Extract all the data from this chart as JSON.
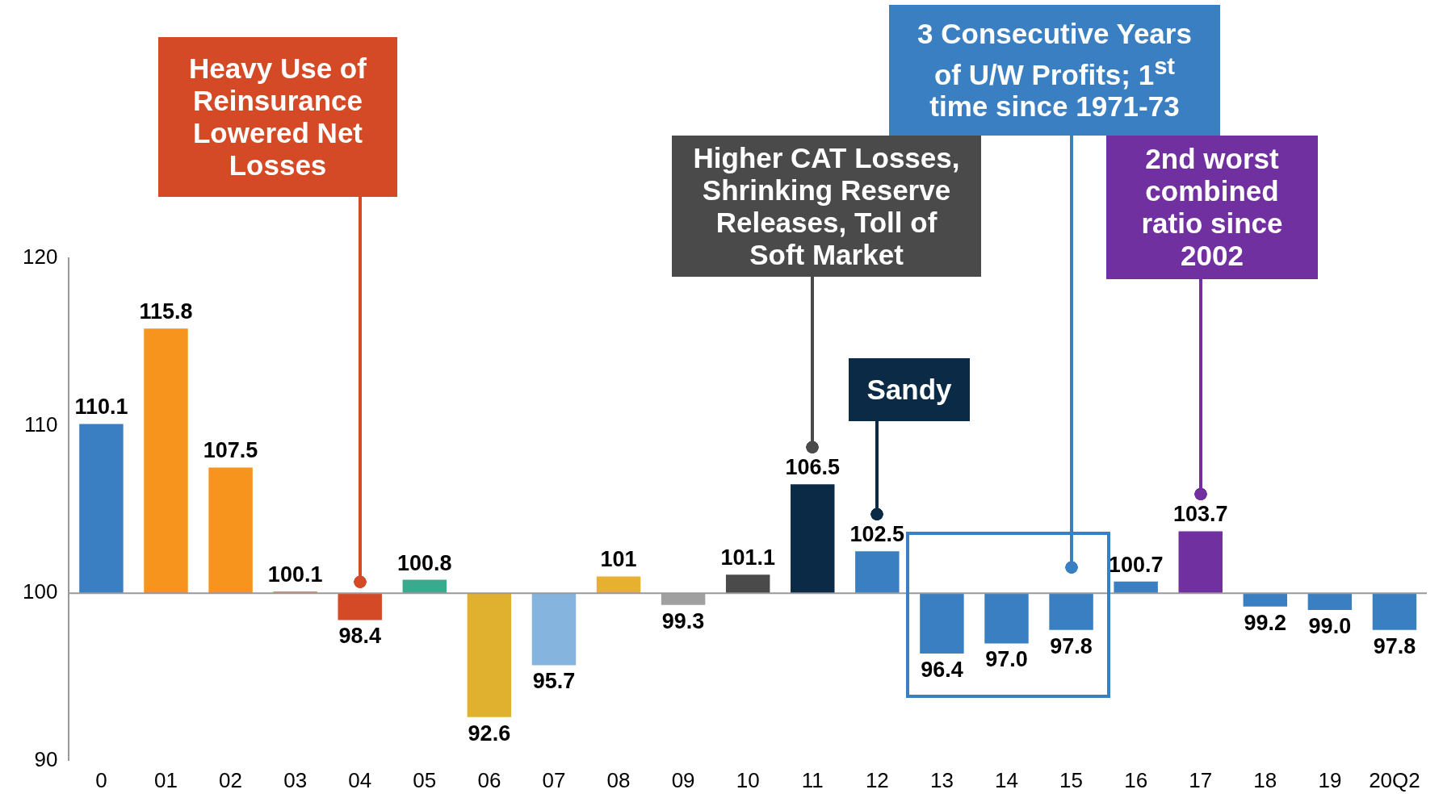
{
  "chart_data": {
    "type": "bar",
    "categories": [
      "0",
      "01",
      "02",
      "03",
      "04",
      "05",
      "06",
      "07",
      "08",
      "09",
      "10",
      "11",
      "12",
      "13",
      "14",
      "15",
      "16",
      "17",
      "18",
      "19",
      "20Q2"
    ],
    "base": [
      100,
      100,
      100,
      100,
      100,
      100,
      100,
      100,
      100,
      100,
      100,
      100,
      100,
      100,
      100,
      100,
      100,
      100,
      100,
      100,
      100
    ],
    "values": [
      10.1,
      15.8,
      7.5,
      0.1,
      -1.6,
      0.8,
      -7.4,
      -4.3,
      1,
      -0.7,
      1.1,
      6.5,
      2.5,
      -3.6,
      -3.0,
      -2.2,
      0.7,
      3.7,
      -0.8,
      -1.0,
      -2.2
    ],
    "value_labels": [
      "110.1",
      "115.8",
      "107.5",
      "100.1",
      "98.4",
      "100.8",
      "92.6",
      "95.7",
      "101",
      "99.3",
      "101.1",
      "106.5",
      "102.5",
      "96.4",
      "97.0",
      "97.8",
      "100.7",
      "103.7",
      "99.2",
      "99.0",
      "97.8"
    ],
    "colors": [
      "#3a7fc1",
      "#f7941d",
      "#f7941d",
      "#f7941d",
      "#d44a27",
      "#3aaa8f",
      "#e0b12f",
      "#85b4de",
      "#e6b030",
      "#a0a0a0",
      "#4a4a4a",
      "#0b2a45",
      "#3a7fc1",
      "#3a7fc1",
      "#3a7fc1",
      "#3a7fc1",
      "#3a7fc1",
      "#7030a0",
      "#3a7fc1",
      "#3a7fc1",
      "#3a7fc1"
    ],
    "ylim": [
      90,
      120
    ],
    "yticks": [
      90,
      100,
      110,
      120
    ],
    "ref_lines": [
      {
        "axis": "y",
        "value": 100,
        "color": "#999999"
      }
    ],
    "annotations": [
      "Heavy Use of Reinsurance Lowered Net Losses",
      "Higher CAT Losses, Shrinking Reserve Releases, Toll of Soft Market",
      "Sandy",
      "3 Consecutive Years of U/W Profits; 1$^{st}$ time since 1971-73",
      "2nd worst combined ratio since 2002"
    ],
    "legend": false,
    "grid": false
  }
}
